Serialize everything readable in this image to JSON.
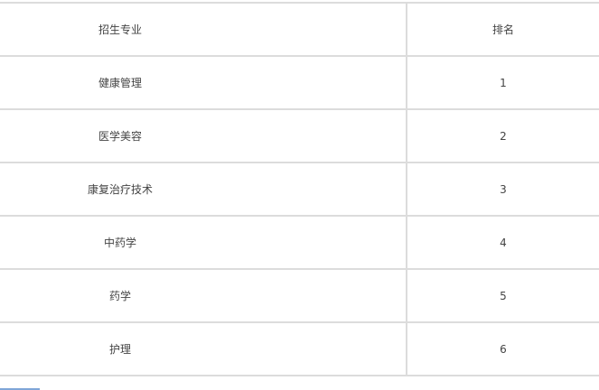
{
  "table": {
    "headers": [
      "招生专业",
      "排名"
    ],
    "rows": [
      [
        "健康管理",
        "1"
      ],
      [
        "医学美容",
        "2"
      ],
      [
        "康复治疗技术",
        "3"
      ],
      [
        "中药学",
        "4"
      ],
      [
        "药学",
        "5"
      ],
      [
        "护理",
        "6"
      ]
    ]
  }
}
